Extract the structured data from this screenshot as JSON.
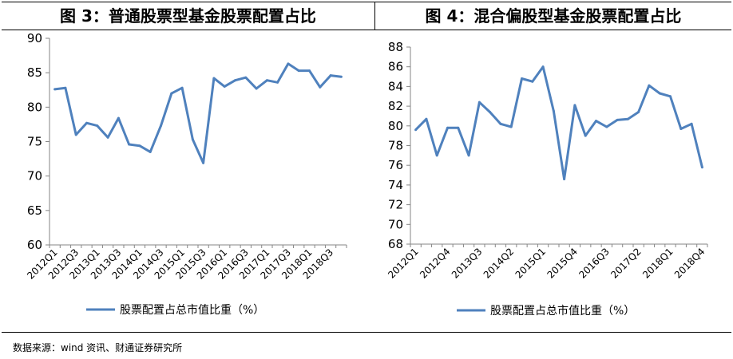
{
  "panels": [
    {
      "title": "图 3：普通股票型基金股票配置占比"
    },
    {
      "title": "图 4：混合偏股型基金股票配置占比"
    }
  ],
  "source": "数据来源：wind 资讯、财通证券研究所",
  "chart_data": [
    {
      "type": "line",
      "title": "图 3：普通股票型基金股票配置占比",
      "ylim": [
        60,
        90
      ],
      "yticks": [
        60,
        65,
        70,
        75,
        80,
        85,
        90
      ],
      "x": [
        "2012Q1",
        "2012Q2",
        "2012Q3",
        "2012Q4",
        "2013Q1",
        "2013Q2",
        "2013Q3",
        "2013Q4",
        "2014Q1",
        "2014Q2",
        "2014Q3",
        "2014Q4",
        "2015Q1",
        "2015Q2",
        "2015Q3",
        "2015Q4",
        "2016Q1",
        "2016Q2",
        "2016Q3",
        "2016Q4",
        "2017Q1",
        "2017Q2",
        "2017Q3",
        "2017Q4",
        "2018Q1",
        "2018Q2",
        "2018Q3",
        "2018Q4"
      ],
      "xtick_labels": [
        "2012Q1",
        "2012Q3",
        "2013Q1",
        "2013Q3",
        "2014Q1",
        "2014Q3",
        "2015Q1",
        "2015Q3",
        "2016Q1",
        "2016Q3",
        "2017Q1",
        "2017Q3",
        "2018Q1",
        "2018Q3"
      ],
      "series": [
        {
          "name": "股票配置占总市值比重（%）",
          "color": "#4f81bd",
          "values": [
            82.6,
            82.8,
            76.0,
            77.7,
            77.3,
            75.6,
            78.4,
            74.6,
            74.4,
            73.5,
            77.3,
            82.0,
            82.8,
            75.3,
            71.9,
            84.2,
            83.0,
            83.9,
            84.3,
            82.7,
            83.9,
            83.6,
            86.3,
            85.3,
            85.3,
            82.9,
            84.6,
            84.4
          ]
        }
      ],
      "legend": "bottom"
    },
    {
      "type": "line",
      "title": "图 4：混合偏股型基金股票配置占比",
      "ylim": [
        68,
        88
      ],
      "yticks": [
        68,
        70,
        72,
        74,
        76,
        78,
        80,
        82,
        84,
        86,
        88
      ],
      "x": [
        "2012Q1",
        "2012Q2",
        "2012Q3",
        "2012Q4",
        "2013Q1",
        "2013Q2",
        "2013Q3",
        "2013Q4",
        "2014Q1",
        "2014Q2",
        "2014Q3",
        "2014Q4",
        "2015Q1",
        "2015Q2",
        "2015Q3",
        "2015Q4",
        "2016Q1",
        "2016Q2",
        "2016Q3",
        "2016Q4",
        "2017Q1",
        "2017Q2",
        "2017Q3",
        "2017Q4",
        "2018Q1",
        "2018Q2",
        "2018Q3",
        "2018Q4"
      ],
      "xtick_labels": [
        "2012Q1",
        "2012Q4",
        "2013Q3",
        "2014Q2",
        "2015Q1",
        "2015Q4",
        "2016Q3",
        "2017Q2",
        "2018Q1",
        "2018Q4"
      ],
      "series": [
        {
          "name": "股票配置占总市值比重（%）",
          "color": "#4f81bd",
          "values": [
            79.6,
            80.7,
            77.0,
            79.8,
            79.8,
            77.0,
            82.4,
            81.4,
            80.2,
            79.9,
            84.8,
            84.5,
            86.0,
            81.5,
            74.6,
            82.1,
            79.0,
            80.5,
            79.9,
            80.6,
            80.7,
            81.4,
            84.1,
            83.3,
            83.0,
            79.7,
            80.2,
            75.8
          ]
        }
      ],
      "legend": "bottom"
    }
  ]
}
